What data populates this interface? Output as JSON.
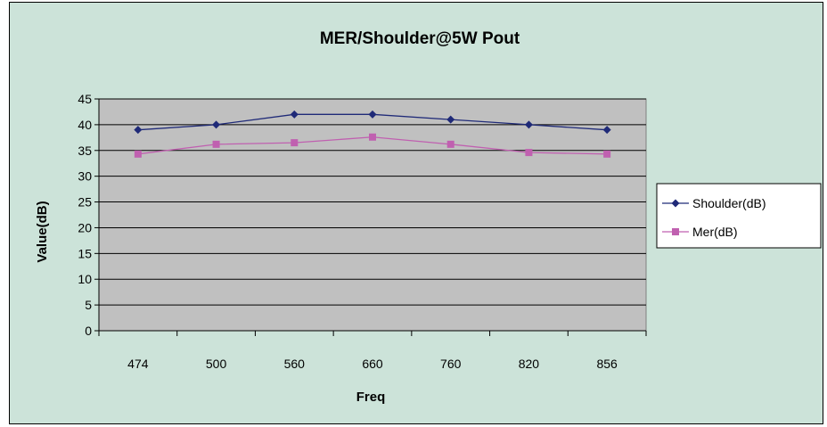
{
  "chart_data": {
    "type": "line",
    "title": "MER/Shoulder@5W Pout",
    "xlabel": "Freq",
    "ylabel": "Value(dB)",
    "categories": [
      "474",
      "500",
      "560",
      "660",
      "760",
      "820",
      "856"
    ],
    "ylim": [
      0,
      45
    ],
    "yticks": [
      "0",
      "5",
      "10",
      "15",
      "20",
      "25",
      "30",
      "35",
      "40",
      "45"
    ],
    "grid": true,
    "legend_position": "right",
    "plot_background": "#c0c0c0",
    "series": [
      {
        "name": "Shoulder(dB)",
        "color": "#1f2a78",
        "marker": "diamond",
        "values": [
          39,
          40,
          42,
          42,
          41,
          40,
          39
        ]
      },
      {
        "name": "Mer(dB)",
        "color": "#c060b0",
        "marker": "square",
        "values": [
          34.3,
          36.2,
          36.5,
          37.6,
          36.2,
          34.6,
          34.3
        ]
      }
    ]
  }
}
